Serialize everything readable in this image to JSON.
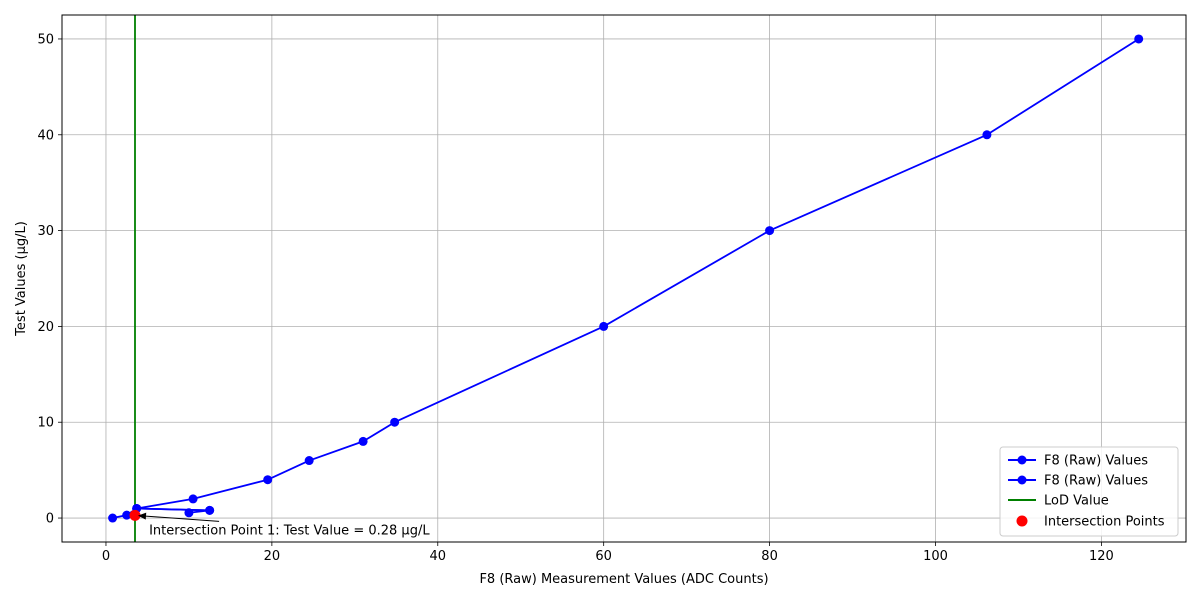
{
  "chart_data": {
    "type": "line",
    "title": "",
    "xlabel": "F8 (Raw) Measurement Values (ADC Counts)",
    "ylabel": "Test Values (µg/L)",
    "xlim": [
      -5.3,
      130.2
    ],
    "ylim": [
      -2.5,
      52.5
    ],
    "xticks": [
      0,
      20,
      40,
      60,
      80,
      100,
      120
    ],
    "yticks": [
      0,
      10,
      20,
      30,
      40,
      50
    ],
    "grid": true,
    "legend_position": "lower-right",
    "series": [
      {
        "name": "F8 (Raw) Values",
        "color": "#0000ff",
        "marker": "circle",
        "x": [
          0.8,
          2.5,
          3.7,
          12.5
        ],
        "y": [
          0.0,
          0.3,
          1.0,
          0.8
        ]
      },
      {
        "name": "F8 (Raw) Values",
        "color": "#0000ff",
        "marker": "circle",
        "x": [
          10.0,
          12.5,
          3.7,
          10.5,
          19.5,
          24.5,
          31.0,
          34.8,
          60.0,
          80.0,
          106.2,
          124.5
        ],
        "y": [
          0.55,
          0.8,
          1.0,
          2.0,
          4.0,
          6.0,
          8.0,
          10.0,
          20.0,
          30.0,
          40.0,
          50.0
        ]
      }
    ],
    "lod_line": {
      "name": "LoD Value",
      "color": "#008000",
      "x": 3.5
    },
    "intersection_points": {
      "name": "Intersection Points",
      "color": "#ff0000",
      "points": [
        {
          "x": 3.5,
          "y": 0.28
        }
      ]
    },
    "annotation": {
      "text": "Intersection Point 1: Test Value = 0.28 µg/L",
      "point": {
        "x": 3.5,
        "y": 0.28
      },
      "text_pos": {
        "x": 5.2,
        "y": -1.7
      }
    }
  }
}
